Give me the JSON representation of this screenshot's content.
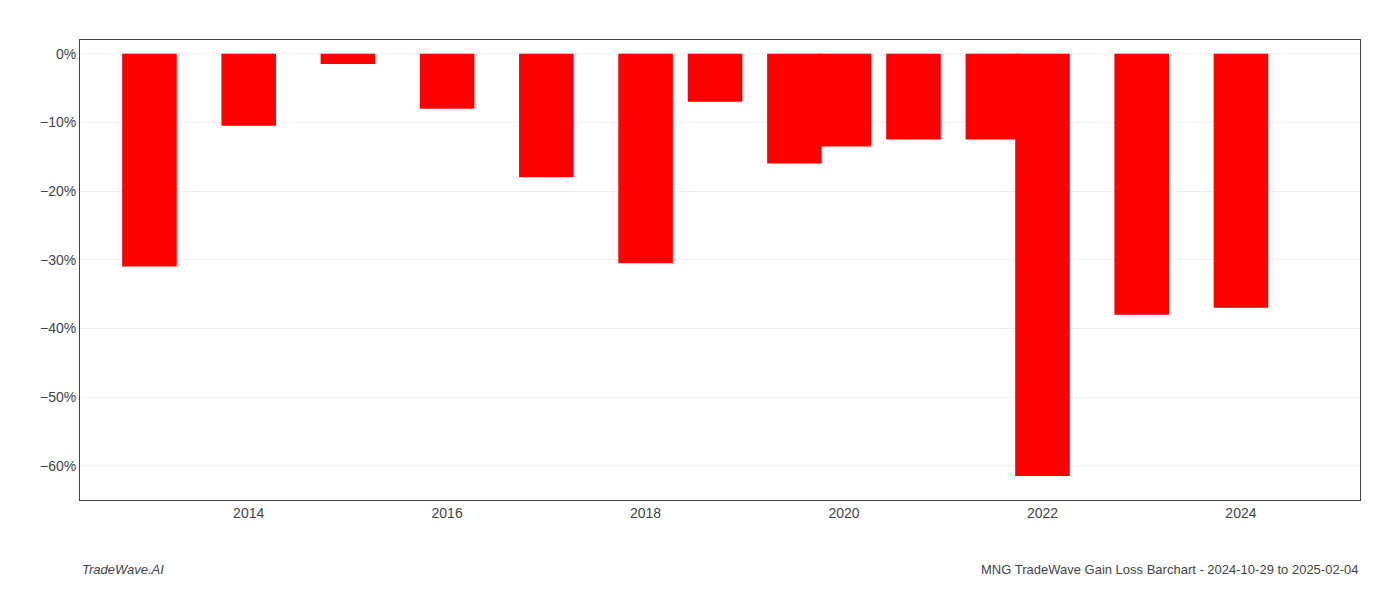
{
  "chart_data": {
    "type": "bar",
    "x": [
      2013,
      2014,
      2015,
      2016,
      2017,
      2018,
      2018.7,
      2019.5,
      2020,
      2020.7,
      2021.5,
      2022,
      2023,
      2024
    ],
    "values": [
      -31.0,
      -10.5,
      -1.5,
      -8.0,
      -18.0,
      -30.5,
      -7.0,
      -16.0,
      -13.5,
      -12.5,
      -12.5,
      -61.5,
      -38.0,
      -37.0
    ],
    "color": "#ff0000",
    "xlim": [
      2012.3,
      2025.2
    ],
    "xticks": [
      2014,
      2016,
      2018,
      2020,
      2022,
      2024
    ],
    "ylim": [
      -65,
      2
    ],
    "yticks": [
      {
        "value": 0,
        "label": "0%"
      },
      {
        "value": -10,
        "label": "−10%"
      },
      {
        "value": -20,
        "label": "−20%"
      },
      {
        "value": -30,
        "label": "−30%"
      },
      {
        "value": -40,
        "label": "−40%"
      },
      {
        "value": -50,
        "label": "−50%"
      },
      {
        "value": -60,
        "label": "−60%"
      }
    ],
    "grid": true,
    "annotations": [
      "TradeWave.AI",
      "MNG TradeWave Gain Loss Barchart - 2024-10-29 to 2025-02-04"
    ]
  }
}
